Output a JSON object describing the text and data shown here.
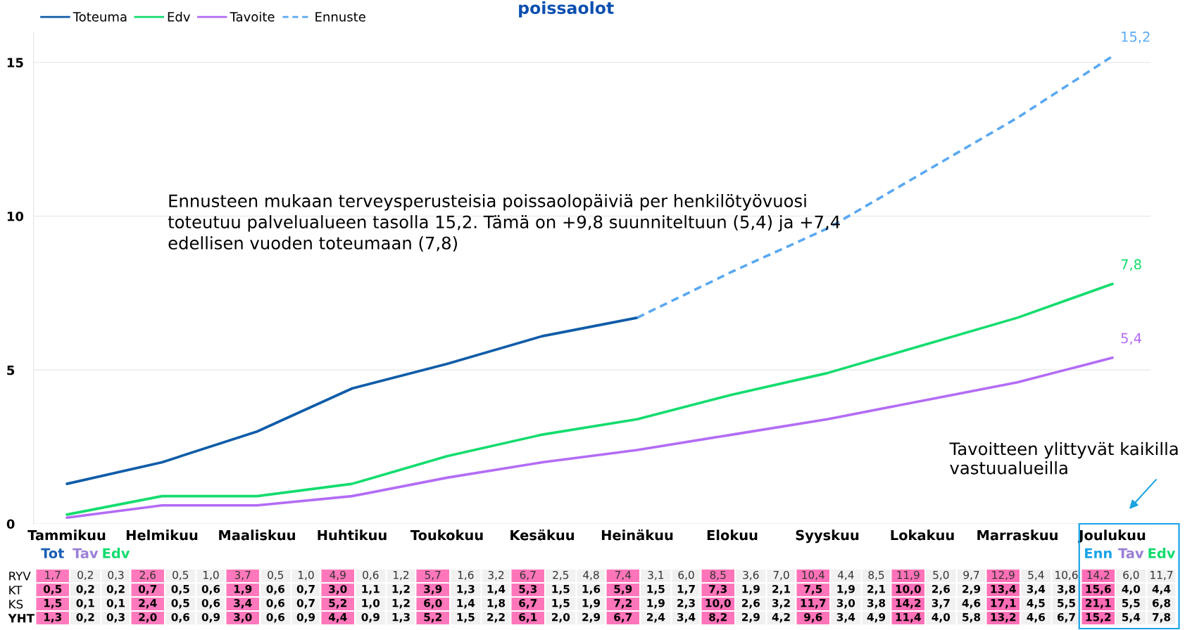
{
  "chart_data": [
    {
      "type": "line",
      "title": "poissaolot",
      "categories": [
        "Tammikuu",
        "Helmikuu",
        "Maaliskuu",
        "Huhtikuu",
        "Toukokuu",
        "Kesäkuu",
        "Heinäkuu",
        "Elokuu",
        "Syyskuu",
        "Lokakuu",
        "Marraskuu",
        "Joulukuu"
      ],
      "series": [
        {
          "name": "Toteuma",
          "color": "#0f5ca8",
          "values": [
            1.3,
            2.0,
            3.0,
            4.4,
            5.2,
            6.1,
            6.7,
            null,
            null,
            null,
            null,
            null
          ]
        },
        {
          "name": "Edv",
          "color": "#14dc6e",
          "values": [
            0.3,
            0.9,
            0.9,
            1.3,
            2.2,
            2.9,
            3.4,
            4.2,
            4.9,
            5.8,
            6.7,
            7.8
          ],
          "value_labels": [
            null,
            null,
            null,
            null,
            null,
            null,
            null,
            null,
            null,
            null,
            null,
            "7,8"
          ]
        },
        {
          "name": "Tavoite",
          "color": "#b36cf5",
          "values": [
            0.2,
            0.6,
            0.6,
            0.9,
            1.5,
            2.0,
            2.4,
            2.9,
            3.4,
            4.0,
            4.6,
            5.4
          ],
          "value_labels": [
            null,
            null,
            null,
            null,
            null,
            null,
            null,
            null,
            null,
            null,
            null,
            "5,4"
          ]
        },
        {
          "name": "Ennuste",
          "color": "#5aa9f2",
          "line_style": "dashed",
          "values": [
            null,
            null,
            null,
            null,
            null,
            null,
            6.7,
            8.2,
            9.6,
            11.4,
            13.2,
            15.2
          ],
          "value_labels": [
            null,
            null,
            null,
            null,
            null,
            null,
            null,
            null,
            null,
            null,
            null,
            "15,2"
          ]
        }
      ],
      "ylim": [
        0,
        16
      ],
      "yticks": [
        0,
        5,
        10,
        15
      ],
      "grid": "y",
      "legend": "top left",
      "line_style": "solid",
      "marker": "none",
      "annotations": [
        "Ennusteen mukaan terveysperusteisia poissaolopäiviä per henkilötyövuosi toteutuu palvelualueen tasolla 15,2. Tämä on +9,8 suunniteltuun (5,4) ja +7,4 edellisen vuoden toteumaan (7,8)",
        "Tavoitteen ylittyvät kaikilla vastuualueilla"
      ]
    },
    {
      "type": "heatmap",
      "categories": [
        "Tot",
        "Tav",
        "Edv",
        null,
        null,
        null,
        null,
        null,
        null,
        null,
        null,
        null,
        null,
        null,
        null,
        null,
        null,
        null,
        null,
        null,
        null,
        null,
        null,
        null,
        null,
        null,
        null,
        null,
        null,
        null,
        null,
        null,
        null,
        "Enn",
        "Tav",
        "Edv"
      ],
      "y_categories": [
        "RYV",
        "KT",
        "KS",
        "YHT"
      ],
      "cells": [
        [
          1.7,
          0.2,
          0.3,
          2.6,
          0.5,
          1.0,
          3.7,
          0.5,
          1.0,
          4.9,
          0.6,
          1.2,
          5.7,
          1.6,
          3.2,
          6.7,
          2.5,
          4.8,
          7.4,
          3.1,
          6.0,
          8.5,
          3.6,
          7.0,
          10.4,
          4.4,
          8.5,
          11.9,
          5.0,
          9.7,
          12.9,
          5.4,
          10.6,
          14.2,
          6.0,
          11.7
        ],
        [
          0.5,
          0.2,
          0.2,
          0.7,
          0.5,
          0.6,
          1.9,
          0.6,
          0.7,
          3.0,
          1.1,
          1.2,
          3.9,
          1.3,
          1.4,
          5.3,
          1.5,
          1.6,
          5.9,
          1.5,
          1.7,
          7.3,
          1.9,
          2.1,
          7.5,
          1.9,
          2.1,
          10.0,
          2.6,
          2.9,
          13.4,
          3.4,
          3.8,
          15.6,
          4.0,
          4.4
        ],
        [
          1.5,
          0.1,
          0.1,
          2.4,
          0.5,
          0.6,
          3.4,
          0.6,
          0.7,
          5.2,
          1.0,
          1.2,
          6.0,
          1.4,
          1.8,
          6.7,
          1.5,
          1.9,
          7.2,
          1.9,
          2.3,
          10.0,
          2.6,
          3.2,
          11.7,
          3.0,
          3.8,
          14.2,
          3.7,
          4.6,
          17.1,
          4.5,
          5.5,
          21.1,
          5.5,
          6.8
        ],
        [
          1.3,
          0.2,
          0.3,
          2.0,
          0.6,
          0.9,
          3.0,
          0.6,
          0.9,
          4.4,
          0.9,
          1.3,
          5.2,
          1.5,
          2.2,
          6.1,
          2.0,
          2.9,
          6.7,
          2.4,
          3.4,
          8.2,
          2.9,
          4.2,
          9.6,
          3.4,
          4.9,
          11.4,
          4.0,
          5.8,
          13.2,
          4.6,
          6.7,
          15.2,
          5.4,
          7.8
        ]
      ],
      "cell_labels": [
        [
          "1,7",
          "0,2",
          "0,3",
          "2,6",
          "0,5",
          "1,0",
          "3,7",
          "0,5",
          "1,0",
          "4,9",
          "0,6",
          "1,2",
          "5,7",
          "1,6",
          "3,2",
          "6,7",
          "2,5",
          "4,8",
          "7,4",
          "3,1",
          "6,0",
          "8,5",
          "3,6",
          "7,0",
          "10,4",
          "4,4",
          "8,5",
          "11,9",
          "5,0",
          "9,7",
          "12,9",
          "5,4",
          "10,6",
          "14,2",
          "6,0",
          "11,7"
        ],
        [
          "0,5",
          "0,2",
          "0,2",
          "0,7",
          "0,5",
          "0,6",
          "1,9",
          "0,6",
          "0,7",
          "3,0",
          "1,1",
          "1,2",
          "3,9",
          "1,3",
          "1,4",
          "5,3",
          "1,5",
          "1,6",
          "5,9",
          "1,5",
          "1,7",
          "7,3",
          "1,9",
          "2,1",
          "7,5",
          "1,9",
          "2,1",
          "10,0",
          "2,6",
          "2,9",
          "13,4",
          "3,4",
          "3,8",
          "15,6",
          "4,0",
          "4,4"
        ],
        [
          "1,5",
          "0,1",
          "0,1",
          "2,4",
          "0,5",
          "0,6",
          "3,4",
          "0,6",
          "0,7",
          "5,2",
          "1,0",
          "1,2",
          "6,0",
          "1,4",
          "1,8",
          "6,7",
          "1,5",
          "1,9",
          "7,2",
          "1,9",
          "2,3",
          "10,0",
          "2,6",
          "3,2",
          "11,7",
          "3,0",
          "3,8",
          "14,2",
          "3,7",
          "4,6",
          "17,1",
          "4,5",
          "5,5",
          "21,1",
          "5,5",
          "6,8"
        ],
        [
          "1,3",
          "0,2",
          "0,3",
          "2,0",
          "0,6",
          "0,9",
          "3,0",
          "0,6",
          "0,9",
          "4,4",
          "0,9",
          "1,3",
          "5,2",
          "1,5",
          "2,2",
          "6,1",
          "2,0",
          "2,9",
          "6,7",
          "2,4",
          "3,4",
          "8,2",
          "2,9",
          "4,2",
          "9,6",
          "3,4",
          "4,9",
          "11,4",
          "4,0",
          "5,8",
          "13,2",
          "4,6",
          "6,7",
          "15,2",
          "5,4",
          "7,8"
        ]
      ],
      "colors": [
        "#ff69b4",
        "#efefef",
        "#efefef",
        "#ff69b4",
        "#efefef",
        "#efefef",
        "#ff69b4",
        "#efefef",
        "#efefef",
        "#ff69b4",
        "#efefef",
        "#efefef",
        "#ff69b4",
        "#efefef",
        "#efefef",
        "#ff69b4",
        "#efefef",
        "#efefef",
        "#ff69b4",
        "#efefef",
        "#efefef",
        "#ff69b4",
        "#efefef",
        "#efefef",
        "#ff69b4",
        "#efefef",
        "#efefef",
        "#ff69b4",
        "#efefef",
        "#efefef",
        "#ff69b4",
        "#efefef",
        "#efefef",
        "#ff69b4",
        "#efefef",
        "#efefef"
      ]
    }
  ]
}
